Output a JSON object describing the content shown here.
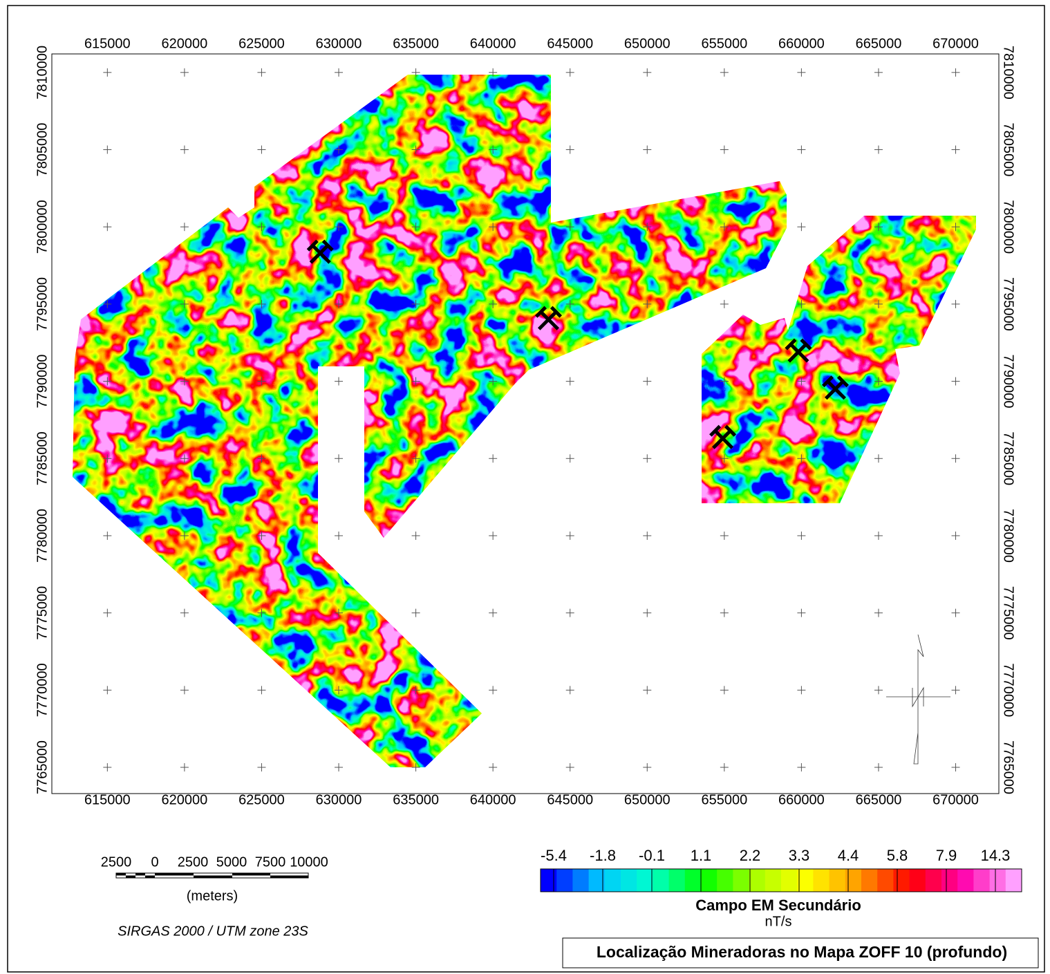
{
  "map": {
    "x_ticks": [
      615000,
      620000,
      625000,
      630000,
      635000,
      640000,
      645000,
      650000,
      655000,
      660000,
      665000,
      670000
    ],
    "y_ticks": [
      7765000,
      7770000,
      7775000,
      7780000,
      7785000,
      7790000,
      7795000,
      7800000,
      7805000,
      7810000
    ],
    "xlim": [
      611400,
      672800
    ],
    "ylim": [
      7763300,
      7811200
    ],
    "mines": [
      {
        "x": 628800,
        "y": 7798300
      },
      {
        "x": 643600,
        "y": 7794000
      },
      {
        "x": 659800,
        "y": 7791900
      },
      {
        "x": 662200,
        "y": 7789500
      },
      {
        "x": 654900,
        "y": 7786300
      }
    ]
  },
  "scale_bar": {
    "labels": [
      "2500",
      "0",
      "2500",
      "5000",
      "7500",
      "10000"
    ],
    "unit": "(meters)"
  },
  "projection": "SIRGAS 2000 / UTM zone 23S",
  "colorbar": {
    "labels": [
      -5.4,
      -1.8,
      -0.1,
      1.1,
      2.2,
      3.3,
      4.4,
      5.8,
      7.9,
      14.3
    ],
    "colors": [
      "#0000ff",
      "#00c8ff",
      "#00ffcc",
      "#00ff00",
      "#aaff00",
      "#ffff00",
      "#ff9900",
      "#ff0000",
      "#ff00aa",
      "#ffa0ff"
    ],
    "title": "Campo EM Secundário",
    "unit": "nT/s"
  },
  "title": "Localização Mineradoras no Mapa ZOFF 10 (profundo)"
}
